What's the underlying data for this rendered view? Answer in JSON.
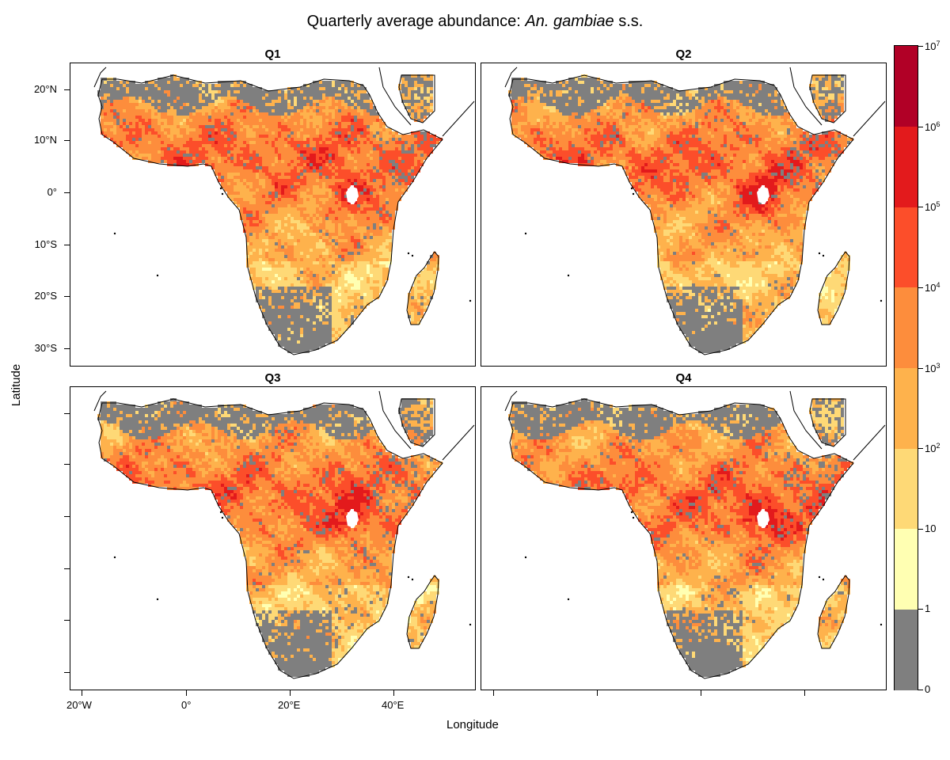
{
  "title": {
    "prefix": "Quarterly average abundance: ",
    "species": "An. gambiae",
    "suffix": " s.s."
  },
  "panels": [
    {
      "label": "Q1"
    },
    {
      "label": "Q2"
    },
    {
      "label": "Q3"
    },
    {
      "label": "Q4"
    }
  ],
  "axes": {
    "x_title": "Longitude",
    "y_title": "Latitude",
    "lat_ticks": [
      "20°N",
      "10°N",
      "0°",
      "10°S",
      "20°S",
      "30°S"
    ],
    "lon_ticks": [
      "20°W",
      "0°",
      "20°E",
      "40°E"
    ]
  },
  "colorbar": {
    "labels": [
      "0",
      "1",
      "10",
      "10^2",
      "10^3",
      "10^4",
      "10^5",
      "10^6",
      "10^7"
    ],
    "colors": [
      "#7f7f7f",
      "#ffffb2",
      "#fed976",
      "#feb24c",
      "#fd8d3c",
      "#fc4e2a",
      "#e31a1c",
      "#b10026"
    ]
  },
  "map_colors": {
    "no_data": "#7f7f7f",
    "coast": "#000000",
    "lake": "#ffffff"
  }
}
